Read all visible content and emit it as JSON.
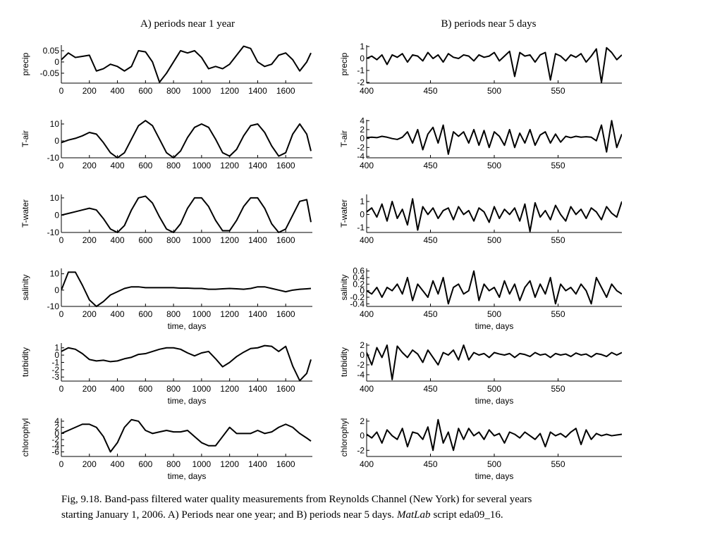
{
  "chart_data": [
    {
      "type": "line",
      "title": "A) periods near 1 year",
      "ylabel": "precip",
      "x": [
        0,
        50,
        100,
        150,
        200,
        250,
        300,
        350,
        400,
        450,
        500,
        550,
        600,
        650,
        700,
        750,
        800,
        850,
        900,
        950,
        1000,
        1050,
        1100,
        1150,
        1200,
        1250,
        1300,
        1350,
        1400,
        1450,
        1500,
        1550,
        1600,
        1650,
        1700,
        1750,
        1780
      ],
      "values": [
        0.01,
        0.04,
        0.02,
        0.025,
        0.03,
        -0.04,
        -0.03,
        -0.01,
        -0.02,
        -0.04,
        -0.02,
        0.05,
        0.045,
        0.0,
        -0.09,
        -0.05,
        0.0,
        0.05,
        0.04,
        0.05,
        0.02,
        -0.03,
        -0.02,
        -0.03,
        -0.01,
        0.03,
        0.07,
        0.06,
        0.0,
        -0.02,
        -0.01,
        0.03,
        0.04,
        0.01,
        -0.04,
        0.0,
        0.04
      ],
      "color": "#000000",
      "xlim": [
        0,
        1790
      ],
      "ylim": [
        -0.094,
        0.075
      ],
      "xticks": [
        0,
        200,
        400,
        600,
        800,
        1000,
        1200,
        1400,
        1600
      ],
      "yticks": [
        -0.05,
        0,
        0.05
      ]
    },
    {
      "type": "line",
      "ylabel": "T-air",
      "x": [
        0,
        50,
        100,
        150,
        200,
        250,
        300,
        350,
        400,
        450,
        500,
        550,
        600,
        650,
        700,
        750,
        800,
        850,
        900,
        950,
        1000,
        1050,
        1100,
        1150,
        1200,
        1250,
        1300,
        1350,
        1400,
        1450,
        1500,
        1550,
        1600,
        1650,
        1700,
        1750,
        1780
      ],
      "values": [
        -1,
        0.5,
        1.5,
        3,
        5,
        4,
        -1,
        -7,
        -10,
        -7,
        1,
        9,
        12,
        9,
        1,
        -7,
        -10,
        -6,
        2,
        8,
        10,
        8,
        1,
        -7,
        -9,
        -5,
        3,
        9,
        10,
        5,
        -3,
        -9,
        -7,
        4,
        10,
        4,
        -6
      ],
      "color": "#000000",
      "xlim": [
        0,
        1790
      ],
      "ylim": [
        -10,
        12.5
      ],
      "xticks": [
        0,
        200,
        400,
        600,
        800,
        1000,
        1200,
        1400,
        1600
      ],
      "yticks": [
        -10,
        0,
        10
      ]
    },
    {
      "type": "line",
      "ylabel": "T-water",
      "x": [
        0,
        50,
        100,
        150,
        200,
        250,
        300,
        350,
        400,
        450,
        500,
        550,
        600,
        650,
        700,
        750,
        800,
        850,
        900,
        950,
        1000,
        1050,
        1100,
        1150,
        1200,
        1250,
        1300,
        1350,
        1400,
        1450,
        1500,
        1550,
        1600,
        1650,
        1700,
        1750,
        1780
      ],
      "values": [
        0,
        1,
        2,
        3,
        4,
        3,
        -2,
        -8,
        -10,
        -6,
        3,
        10,
        11,
        7,
        -1,
        -8,
        -10,
        -5,
        4,
        10,
        10,
        5,
        -3,
        -9,
        -9,
        -3,
        5,
        10,
        10,
        4,
        -5,
        -10,
        -8,
        0,
        8,
        9,
        -4
      ],
      "color": "#000000",
      "xlim": [
        0,
        1790
      ],
      "ylim": [
        -10,
        12
      ],
      "xticks": [
        0,
        200,
        400,
        600,
        800,
        1000,
        1200,
        1400,
        1600
      ],
      "yticks": [
        -10,
        0,
        10
      ]
    },
    {
      "type": "line",
      "ylabel": "salinity",
      "xlabel": "time, days",
      "x": [
        0,
        50,
        100,
        150,
        200,
        250,
        300,
        350,
        400,
        450,
        500,
        550,
        600,
        650,
        700,
        750,
        800,
        850,
        900,
        950,
        1000,
        1050,
        1100,
        1150,
        1200,
        1250,
        1300,
        1350,
        1400,
        1450,
        1500,
        1550,
        1600,
        1650,
        1700,
        1750,
        1780
      ],
      "values": [
        0,
        11,
        11,
        3,
        -6,
        -10,
        -7,
        -3,
        -1,
        1,
        2,
        2,
        1.5,
        1.5,
        1.5,
        1.5,
        1.5,
        1.2,
        1.2,
        1,
        1,
        0.5,
        0.5,
        0.8,
        1,
        0.8,
        0.5,
        1,
        2,
        2,
        1,
        0,
        -1,
        0,
        0.5,
        0.8,
        1
      ],
      "color": "#000000",
      "xlim": [
        0,
        1790
      ],
      "ylim": [
        -10,
        13.3
      ],
      "xticks": [
        0,
        200,
        400,
        600,
        800,
        1000,
        1200,
        1400,
        1600
      ],
      "yticks": [
        -10,
        0,
        10
      ]
    },
    {
      "type": "line",
      "ylabel": "turbidity",
      "xlabel": "time, days",
      "x": [
        0,
        50,
        100,
        150,
        200,
        250,
        300,
        350,
        400,
        450,
        500,
        550,
        600,
        650,
        700,
        750,
        800,
        850,
        900,
        950,
        1000,
        1050,
        1100,
        1150,
        1200,
        1250,
        1300,
        1350,
        1400,
        1450,
        1500,
        1550,
        1600,
        1650,
        1700,
        1750,
        1780
      ],
      "values": [
        0.5,
        1.0,
        0.8,
        0.2,
        -0.6,
        -0.8,
        -0.7,
        -0.9,
        -0.8,
        -0.5,
        -0.3,
        0.1,
        0.2,
        0.5,
        0.8,
        1.0,
        1.0,
        0.8,
        0.3,
        -0.1,
        0.3,
        0.5,
        -0.5,
        -1.6,
        -1.0,
        -0.2,
        0.4,
        0.9,
        1.0,
        1.3,
        1.2,
        0.5,
        1.2,
        -1.5,
        -3.5,
        -2.5,
        -0.6
      ],
      "color": "#000000",
      "xlim": [
        0,
        1790
      ],
      "ylim": [
        -3.56,
        1.65
      ],
      "xticks": [
        0,
        200,
        400,
        600,
        800,
        1000,
        1200,
        1400,
        1600
      ],
      "yticks": [
        -3,
        -2,
        -1,
        0,
        1
      ]
    },
    {
      "type": "line",
      "ylabel": "chlorophyl",
      "xlabel": "time, days",
      "x": [
        0,
        50,
        100,
        150,
        200,
        250,
        300,
        350,
        400,
        450,
        500,
        550,
        600,
        650,
        700,
        750,
        800,
        850,
        900,
        950,
        1000,
        1050,
        1100,
        1150,
        1200,
        1250,
        1300,
        1350,
        1400,
        1450,
        1500,
        1550,
        1600,
        1650,
        1700,
        1750,
        1780
      ],
      "values": [
        0,
        1,
        2,
        3,
        3,
        2,
        -1,
        -6,
        -3,
        2,
        4.5,
        4,
        1,
        0,
        0.5,
        1,
        0.5,
        0.5,
        1,
        -1,
        -3,
        -4,
        -4,
        -1,
        2,
        0,
        0,
        0,
        1,
        0,
        0.5,
        2,
        3,
        2,
        0,
        -1.5,
        -2.5
      ],
      "color": "#000000",
      "xlim": [
        0,
        1790
      ],
      "ylim": [
        -7.5,
        4.9
      ],
      "xticks": [
        0,
        200,
        400,
        600,
        800,
        1000,
        1200,
        1400,
        1600
      ],
      "yticks": [
        -6,
        -4,
        -2,
        0,
        2,
        4
      ]
    },
    {
      "type": "line",
      "title": "B) periods near 5 days",
      "ylabel": "precip",
      "x": [
        400,
        404,
        408,
        412,
        416,
        420,
        424,
        428,
        432,
        436,
        440,
        444,
        448,
        452,
        456,
        460,
        464,
        468,
        472,
        476,
        480,
        484,
        488,
        492,
        496,
        500,
        504,
        508,
        512,
        516,
        520,
        524,
        528,
        532,
        536,
        540,
        544,
        548,
        552,
        556,
        560,
        564,
        568,
        572,
        576,
        580,
        584,
        588,
        592,
        596,
        600
      ],
      "values": [
        0,
        0.2,
        -0.1,
        0.3,
        -0.5,
        0.3,
        0.1,
        0.4,
        -0.3,
        0.3,
        0.2,
        -0.2,
        0.5,
        0,
        0.3,
        -0.3,
        0.4,
        0.1,
        0,
        0.3,
        0.2,
        -0.2,
        0.3,
        0.1,
        0.2,
        0.5,
        -0.2,
        0.2,
        0.6,
        -1.5,
        0.5,
        0.2,
        0.3,
        -0.3,
        0.3,
        0.5,
        -1.8,
        0.4,
        0.2,
        -0.2,
        0.3,
        0.1,
        0.4,
        -0.3,
        0.2,
        0.8,
        -2,
        0.9,
        0.5,
        -0.1,
        0.3
      ],
      "color": "#000000",
      "xlim": [
        400,
        600
      ],
      "ylim": [
        -2.06,
        1.12
      ],
      "xticks": [
        400,
        450,
        500,
        550
      ],
      "yticks": [
        -2,
        -1,
        0,
        1
      ]
    },
    {
      "type": "line",
      "ylabel": "T-air",
      "x": [
        400,
        404,
        408,
        412,
        416,
        420,
        424,
        428,
        432,
        436,
        440,
        444,
        448,
        452,
        456,
        460,
        464,
        468,
        472,
        476,
        480,
        484,
        488,
        492,
        496,
        500,
        504,
        508,
        512,
        516,
        520,
        524,
        528,
        532,
        536,
        540,
        544,
        548,
        552,
        556,
        560,
        564,
        568,
        572,
        576,
        580,
        584,
        588,
        592,
        596,
        600
      ],
      "values": [
        0.2,
        0.3,
        0.2,
        0.5,
        0.3,
        0,
        -0.2,
        0.3,
        1.5,
        -1,
        2,
        -2.5,
        1,
        2.5,
        -1,
        3,
        -3.5,
        1.5,
        0.5,
        1.5,
        -1,
        2,
        -1.5,
        1.8,
        -2,
        1.5,
        0.5,
        -1.5,
        2,
        -2,
        1.2,
        -1,
        2,
        -1.5,
        0.8,
        1.5,
        -1,
        1,
        -0.8,
        0.5,
        0.2,
        0.5,
        0.3,
        0.4,
        0.3,
        -0.5,
        3,
        -3,
        4,
        -2,
        1
      ],
      "color": "#000000",
      "xlim": [
        400,
        600
      ],
      "ylim": [
        -4.3,
        4.2
      ],
      "xticks": [
        400,
        450,
        500,
        550
      ],
      "yticks": [
        -4,
        -2,
        0,
        2,
        4
      ]
    },
    {
      "type": "line",
      "ylabel": "T-water",
      "x": [
        400,
        404,
        408,
        412,
        416,
        420,
        424,
        428,
        432,
        436,
        440,
        444,
        448,
        452,
        456,
        460,
        464,
        468,
        472,
        476,
        480,
        484,
        488,
        492,
        496,
        500,
        504,
        508,
        512,
        516,
        520,
        524,
        528,
        532,
        536,
        540,
        544,
        548,
        552,
        556,
        560,
        564,
        568,
        572,
        576,
        580,
        584,
        588,
        592,
        596,
        600
      ],
      "values": [
        0.2,
        0.5,
        -0.2,
        0.8,
        -0.5,
        1,
        -0.3,
        0.4,
        -0.8,
        1.2,
        -1.2,
        0.6,
        0,
        0.5,
        -0.3,
        0.3,
        0.5,
        -0.4,
        0.6,
        0,
        0.3,
        -0.5,
        0.5,
        0.2,
        -0.6,
        0.6,
        -0.3,
        0.4,
        0,
        0.5,
        -0.5,
        0.8,
        -1.3,
        0.9,
        -0.2,
        0.3,
        -0.4,
        0.7,
        0,
        -0.5,
        0.6,
        0,
        0.4,
        -0.3,
        0.5,
        0.2,
        -0.4,
        0.6,
        0.1,
        -0.2,
        1
      ],
      "color": "#000000",
      "xlim": [
        400,
        600
      ],
      "ylim": [
        -1.38,
        1.54
      ],
      "xticks": [
        400,
        450,
        500,
        550
      ],
      "yticks": [
        -1,
        0,
        1
      ]
    },
    {
      "type": "line",
      "ylabel": "salinity",
      "xlabel": "time, days",
      "x": [
        400,
        404,
        408,
        412,
        416,
        420,
        424,
        428,
        432,
        436,
        440,
        444,
        448,
        452,
        456,
        460,
        464,
        468,
        472,
        476,
        480,
        484,
        488,
        492,
        496,
        500,
        504,
        508,
        512,
        516,
        520,
        524,
        528,
        532,
        536,
        540,
        544,
        548,
        552,
        556,
        560,
        564,
        568,
        572,
        576,
        580,
        584,
        588,
        592,
        596,
        600
      ],
      "values": [
        0,
        -0.1,
        0.1,
        -0.2,
        0.1,
        0,
        0.2,
        -0.1,
        0.4,
        -0.3,
        0.2,
        0,
        -0.2,
        0.3,
        -0.1,
        0.4,
        -0.4,
        0.1,
        0.2,
        -0.1,
        0,
        0.6,
        -0.3,
        0.2,
        0,
        0.1,
        -0.2,
        0.3,
        -0.1,
        0.2,
        -0.3,
        0.1,
        0.3,
        -0.2,
        0.2,
        -0.1,
        0.4,
        -0.4,
        0.2,
        0,
        0.1,
        -0.1,
        0.2,
        0,
        -0.4,
        0.4,
        0.1,
        -0.2,
        0.2,
        0,
        -0.1
      ],
      "color": "#000000",
      "xlim": [
        400,
        600
      ],
      "ylim": [
        -0.48,
        0.68
      ],
      "xticks": [
        400,
        450,
        500,
        550
      ],
      "yticks": [
        -0.4,
        -0.2,
        0,
        0.2,
        0.4,
        0.6
      ]
    },
    {
      "type": "line",
      "ylabel": "turbidity",
      "xlabel": "time, days",
      "x": [
        400,
        404,
        408,
        412,
        416,
        420,
        424,
        428,
        432,
        436,
        440,
        444,
        448,
        452,
        456,
        460,
        464,
        468,
        472,
        476,
        480,
        484,
        488,
        492,
        496,
        500,
        504,
        508,
        512,
        516,
        520,
        524,
        528,
        532,
        536,
        540,
        544,
        548,
        552,
        556,
        560,
        564,
        568,
        572,
        576,
        580,
        584,
        588,
        592,
        596,
        600
      ],
      "values": [
        0.5,
        -2,
        1.5,
        -0.5,
        2,
        -5,
        1.8,
        0.5,
        -0.5,
        1,
        0.2,
        -1.5,
        1,
        -0.5,
        -2,
        0.5,
        0,
        1,
        -1,
        2,
        -1,
        0.5,
        0,
        0.3,
        -0.5,
        0.5,
        0.2,
        0,
        0.3,
        -0.5,
        0.3,
        0.1,
        -0.3,
        0.5,
        0,
        0.2,
        -0.5,
        0.3,
        0,
        0.2,
        -0.3,
        0.4,
        0,
        0.2,
        -0.4,
        0.3,
        0.1,
        -0.3,
        0.5,
        0,
        0.5
      ],
      "color": "#000000",
      "xlim": [
        400,
        600
      ],
      "ylim": [
        -5.3,
        2.43
      ],
      "xticks": [
        400,
        450,
        500,
        550
      ],
      "yticks": [
        -4,
        -2,
        0,
        2
      ]
    },
    {
      "type": "line",
      "ylabel": "chlorophyl",
      "xlabel": "time, days",
      "x": [
        400,
        404,
        408,
        412,
        416,
        420,
        424,
        428,
        432,
        436,
        440,
        444,
        448,
        452,
        456,
        460,
        464,
        468,
        472,
        476,
        480,
        484,
        488,
        492,
        496,
        500,
        504,
        508,
        512,
        516,
        520,
        524,
        528,
        532,
        536,
        540,
        544,
        548,
        552,
        556,
        560,
        564,
        568,
        572,
        576,
        580,
        584,
        588,
        592,
        596,
        600
      ],
      "values": [
        0.2,
        -0.3,
        0.5,
        -1,
        0.8,
        0,
        -0.5,
        1,
        -1.5,
        0.5,
        0.3,
        -0.5,
        1.2,
        -2,
        2.2,
        -1,
        0.5,
        -2,
        1,
        -0.5,
        1,
        0,
        0.5,
        -0.5,
        0.8,
        0,
        0.3,
        -1,
        0.5,
        0.2,
        -0.3,
        0.5,
        0,
        -0.5,
        0.3,
        -1.5,
        0.5,
        0,
        0.3,
        -0.2,
        0.5,
        1,
        -1.2,
        0.8,
        -0.5,
        0.3,
        0,
        0.2,
        0,
        0.1,
        0.2
      ],
      "color": "#000000",
      "xlim": [
        400,
        600
      ],
      "ylim": [
        -2.84,
        2.37
      ],
      "xticks": [
        400,
        450,
        500,
        550
      ],
      "yticks": [
        -2,
        0,
        2
      ]
    }
  ],
  "caption": [
    "Fig, 9.18. Band-pass filtered water quality measurements from Reynolds Channel (New York)  for several years",
    "starting January 1, 2006. A) Periods near one year; and B) periods near 5 days.",
    "MatLab",
    "script eda09_16."
  ]
}
